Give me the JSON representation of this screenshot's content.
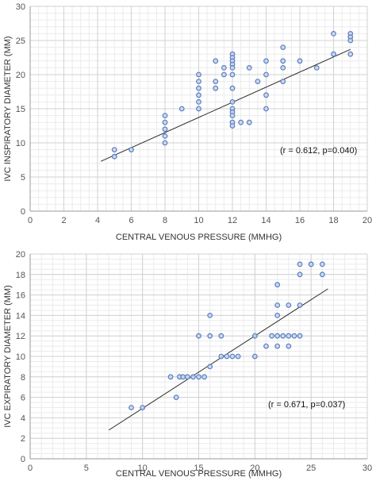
{
  "chart_data": [
    {
      "type": "scatter",
      "xlabel": "CENTRAL VENOUS PRESSURE (MMHG)",
      "ylabel": "IVC INSPIRATORY DIAMETER (MM)",
      "annotation": "(r = 0.612, p=0.040)",
      "xlim": [
        0,
        20
      ],
      "ylim": [
        0,
        30
      ],
      "xticks": [
        "0",
        "2",
        "4",
        "6",
        "8",
        "10",
        "12",
        "14",
        "16",
        "18",
        "20"
      ],
      "yticks": [
        "0",
        "5",
        "10",
        "15",
        "20",
        "25",
        "30"
      ],
      "x_major_step": 2,
      "y_major_step": 5,
      "x_minor_step": 0.5,
      "y_minor_step": 1,
      "grid": true,
      "point_color": "#5b7fc0",
      "trendline": {
        "x": [
          4.2,
          19.0
        ],
        "y": [
          7.3,
          23.7
        ]
      },
      "points": [
        {
          "x": 5,
          "y": 9
        },
        {
          "x": 5,
          "y": 8
        },
        {
          "x": 6,
          "y": 9
        },
        {
          "x": 8,
          "y": 14
        },
        {
          "x": 8,
          "y": 13
        },
        {
          "x": 8,
          "y": 12
        },
        {
          "x": 8,
          "y": 11
        },
        {
          "x": 8,
          "y": 10
        },
        {
          "x": 9,
          "y": 15
        },
        {
          "x": 10,
          "y": 20
        },
        {
          "x": 10,
          "y": 19
        },
        {
          "x": 10,
          "y": 18
        },
        {
          "x": 10,
          "y": 17
        },
        {
          "x": 10,
          "y": 16
        },
        {
          "x": 10,
          "y": 15
        },
        {
          "x": 11,
          "y": 22
        },
        {
          "x": 11,
          "y": 19
        },
        {
          "x": 11,
          "y": 18
        },
        {
          "x": 11.5,
          "y": 21
        },
        {
          "x": 11.5,
          "y": 20
        },
        {
          "x": 12,
          "y": 23
        },
        {
          "x": 12,
          "y": 22.5
        },
        {
          "x": 12,
          "y": 22
        },
        {
          "x": 12,
          "y": 21.5
        },
        {
          "x": 12,
          "y": 21
        },
        {
          "x": 12,
          "y": 20
        },
        {
          "x": 12,
          "y": 18
        },
        {
          "x": 12,
          "y": 16
        },
        {
          "x": 12,
          "y": 15
        },
        {
          "x": 12,
          "y": 14.5
        },
        {
          "x": 12,
          "y": 14
        },
        {
          "x": 12,
          "y": 13
        },
        {
          "x": 12,
          "y": 12.5
        },
        {
          "x": 12.5,
          "y": 13
        },
        {
          "x": 13,
          "y": 21
        },
        {
          "x": 13,
          "y": 13
        },
        {
          "x": 13.5,
          "y": 19
        },
        {
          "x": 14,
          "y": 22
        },
        {
          "x": 14,
          "y": 20
        },
        {
          "x": 14,
          "y": 17
        },
        {
          "x": 14,
          "y": 15
        },
        {
          "x": 15,
          "y": 24
        },
        {
          "x": 15,
          "y": 22
        },
        {
          "x": 15,
          "y": 21
        },
        {
          "x": 15,
          "y": 19
        },
        {
          "x": 16,
          "y": 22
        },
        {
          "x": 17,
          "y": 21
        },
        {
          "x": 18,
          "y": 26
        },
        {
          "x": 18,
          "y": 23
        },
        {
          "x": 19,
          "y": 26
        },
        {
          "x": 19,
          "y": 25.5
        },
        {
          "x": 19,
          "y": 25
        },
        {
          "x": 19,
          "y": 23
        }
      ]
    },
    {
      "type": "scatter",
      "xlabel": "CENTRAL VENOUS PRESSURE (MMHG)",
      "ylabel": "IVC EXPIRATORY DIAMETER (MM)",
      "annotation": "(r = 0.671, p=0.037)",
      "xlim": [
        0,
        30
      ],
      "ylim": [
        0,
        20
      ],
      "xticks": [
        "0",
        "5",
        "10",
        "15",
        "20",
        "25",
        "30"
      ],
      "yticks": [
        "0",
        "2",
        "4",
        "6",
        "8",
        "10",
        "12",
        "14",
        "16",
        "18",
        "20"
      ],
      "x_major_step": 5,
      "y_major_step": 2,
      "x_minor_step": 1,
      "y_minor_step": 0.5,
      "grid": true,
      "point_color": "#5b7fc0",
      "trendline": {
        "x": [
          7.0,
          26.5
        ],
        "y": [
          2.8,
          16.6
        ]
      },
      "points": [
        {
          "x": 9,
          "y": 5
        },
        {
          "x": 10,
          "y": 5
        },
        {
          "x": 12.5,
          "y": 8
        },
        {
          "x": 13,
          "y": 6
        },
        {
          "x": 13.3,
          "y": 8
        },
        {
          "x": 13.6,
          "y": 8
        },
        {
          "x": 14,
          "y": 8
        },
        {
          "x": 14.5,
          "y": 8
        },
        {
          "x": 15,
          "y": 8
        },
        {
          "x": 15.5,
          "y": 8
        },
        {
          "x": 15,
          "y": 12
        },
        {
          "x": 16,
          "y": 14
        },
        {
          "x": 16,
          "y": 12
        },
        {
          "x": 16,
          "y": 9
        },
        {
          "x": 17,
          "y": 12
        },
        {
          "x": 17,
          "y": 10
        },
        {
          "x": 17.5,
          "y": 10
        },
        {
          "x": 18,
          "y": 10
        },
        {
          "x": 18.5,
          "y": 10
        },
        {
          "x": 20,
          "y": 12
        },
        {
          "x": 20,
          "y": 10
        },
        {
          "x": 21,
          "y": 11
        },
        {
          "x": 21.5,
          "y": 12
        },
        {
          "x": 22,
          "y": 17
        },
        {
          "x": 22,
          "y": 15
        },
        {
          "x": 22,
          "y": 14
        },
        {
          "x": 22,
          "y": 12
        },
        {
          "x": 22,
          "y": 11
        },
        {
          "x": 22.5,
          "y": 12
        },
        {
          "x": 23,
          "y": 15
        },
        {
          "x": 23,
          "y": 12
        },
        {
          "x": 23,
          "y": 11
        },
        {
          "x": 23.5,
          "y": 12
        },
        {
          "x": 24,
          "y": 19
        },
        {
          "x": 24,
          "y": 18
        },
        {
          "x": 24,
          "y": 15
        },
        {
          "x": 24,
          "y": 12
        },
        {
          "x": 25,
          "y": 19
        },
        {
          "x": 25,
          "y": 19
        },
        {
          "x": 26,
          "y": 19
        },
        {
          "x": 26,
          "y": 18
        }
      ]
    }
  ]
}
